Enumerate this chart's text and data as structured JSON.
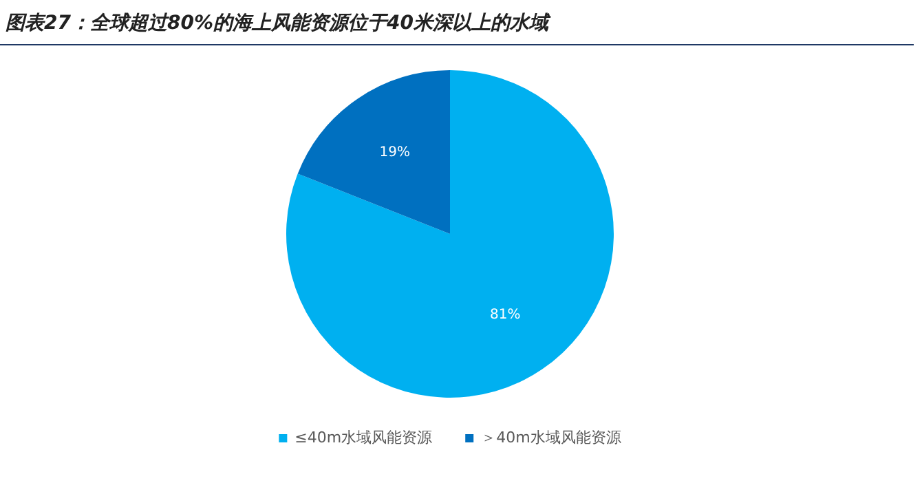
{
  "chart_data": {
    "type": "pie",
    "title": "图表27：全球超过80%的海上风能资源位于40米深以上的水域",
    "categories": [
      "≤40m水域风能资源",
      "＞40m水域风能资源"
    ],
    "values": [
      81,
      19
    ],
    "colors": [
      "#00b0f0",
      "#0070c0"
    ],
    "value_labels": [
      "81%",
      "19%"
    ],
    "legend": "bottom"
  }
}
